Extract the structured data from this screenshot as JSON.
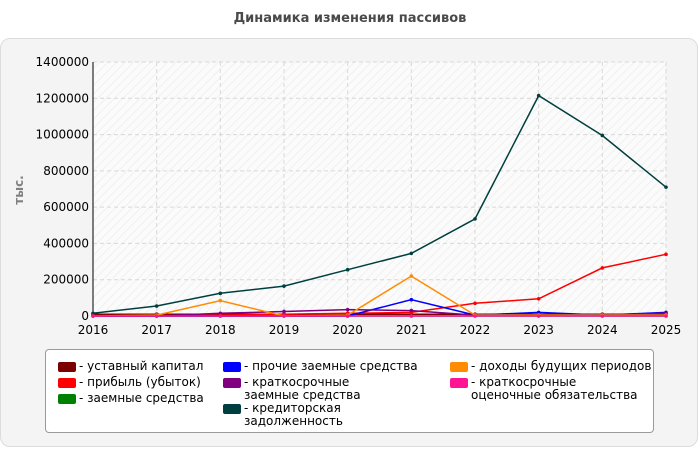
{
  "chart_data": {
    "type": "line",
    "title": "Динамика изменения пассивов",
    "ylabel": "тыс.",
    "xlabel": "",
    "ylim": [
      0,
      1400000
    ],
    "yticks": [
      "0",
      "200000",
      "400000",
      "600000",
      "800000",
      "1000000",
      "1200000",
      "1400000"
    ],
    "y_tick_values": [
      0,
      200000,
      400000,
      600000,
      800000,
      1000000,
      1200000,
      1400000
    ],
    "categories": [
      "2016",
      "2017",
      "2018",
      "2019",
      "2020",
      "2021",
      "2022",
      "2023",
      "2024",
      "2025"
    ],
    "grid": true,
    "legend_position": "bottom",
    "series": [
      {
        "name": "- уставный капитал",
        "color": "#7b0000",
        "values": [
          10000,
          10000,
          10000,
          10000,
          10000,
          10000,
          10000,
          10000,
          10000,
          10000
        ]
      },
      {
        "name": "- прибыль (убыток)",
        "color": "#ff0000",
        "values": [
          2000,
          3000,
          5000,
          10000,
          15000,
          20000,
          70000,
          95000,
          265000,
          340000
        ]
      },
      {
        "name": "- заемные средства",
        "color": "#008000",
        "values": [
          0,
          0,
          0,
          0,
          0,
          0,
          0,
          0,
          0,
          0
        ]
      },
      {
        "name": "- прочие заемные средства",
        "color": "#0000ff",
        "values": [
          0,
          0,
          0,
          0,
          0,
          90000,
          5000,
          20000,
          5000,
          20000
        ]
      },
      {
        "name": "- краткосрочные заемные средства",
        "color": "#800080",
        "values": [
          0,
          0,
          15000,
          25000,
          35000,
          30000,
          5000,
          5000,
          5000,
          15000
        ]
      },
      {
        "name": "- кредиторская задолженность",
        "color": "#003f3f",
        "values": [
          15000,
          55000,
          125000,
          165000,
          255000,
          345000,
          535000,
          1215000,
          995000,
          710000
        ]
      },
      {
        "name": "- доходы будущих периодов",
        "color": "#ff8c00",
        "values": [
          0,
          5000,
          85000,
          0,
          5000,
          220000,
          5000,
          5000,
          5000,
          5000
        ]
      },
      {
        "name": "- краткосрочные оценочные обязательства",
        "color": "#ff1493",
        "values": [
          0,
          0,
          0,
          0,
          0,
          0,
          0,
          0,
          0,
          0
        ]
      }
    ]
  }
}
